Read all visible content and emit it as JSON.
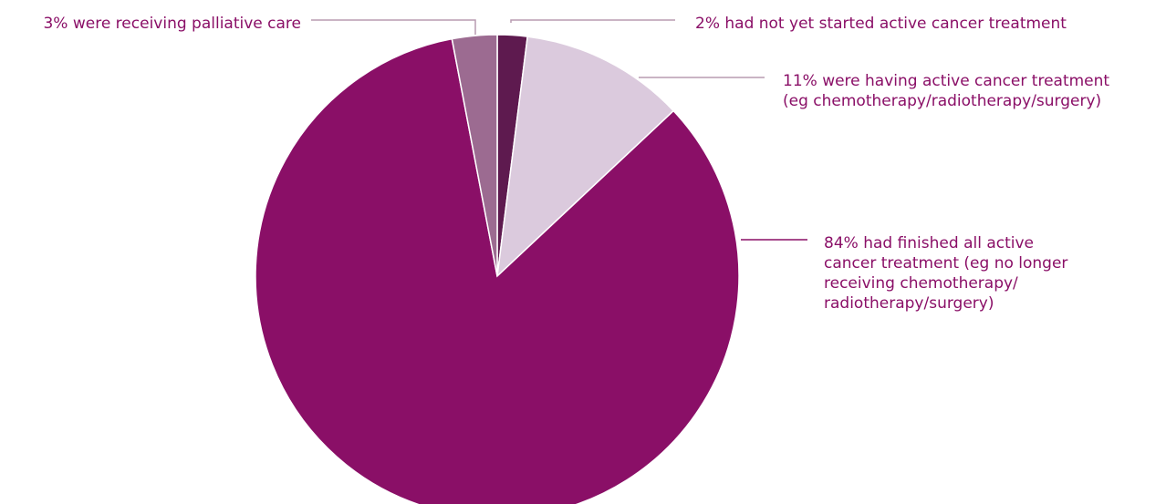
{
  "chart_data": {
    "type": "pie",
    "title": "",
    "slices": [
      {
        "value": 2,
        "label_lines": [
          "2% had not yet started active cancer treatment"
        ],
        "color": "#5e1a4f"
      },
      {
        "value": 11,
        "label_lines": [
          "11% were having active cancer treatment",
          "(eg chemotherapy/radiotherapy/surgery)"
        ],
        "color": "#dbcadd"
      },
      {
        "value": 84,
        "label_lines": [
          "84% had finished all active",
          "cancer treatment (eg no longer",
          "receiving chemotherapy/",
          "radiotherapy/surgery)"
        ],
        "color": "#8a0f67"
      },
      {
        "value": 3,
        "label_lines": [
          "3% were receiving palliative care"
        ],
        "color": "#9c6b91"
      }
    ],
    "label_color": "#8a0f67",
    "leader_color": "#b89bb1",
    "legend": "none"
  }
}
